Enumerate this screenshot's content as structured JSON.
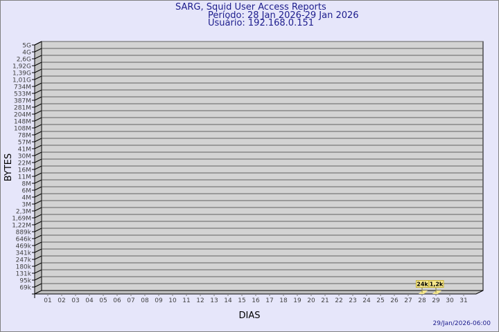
{
  "header": {
    "title": "SARG, Squid User Access Reports",
    "period": "Período: 28 Jan 2026-29 Jan 2026",
    "user": "Usuário: 192.168.0.151"
  },
  "footer": {
    "timestamp": "29/Jan/2026-06:00"
  },
  "colors": {
    "background": "#e6e6fa",
    "title": "#1c1c8c",
    "plot": "#d3d3d3",
    "bar": "#f5e68c"
  },
  "chart_data": {
    "type": "bar",
    "xlabel": "DIAS",
    "ylabel": "BYTES",
    "y_scale": "log",
    "grid": true,
    "y_tick_labels": [
      "5G",
      "4G",
      "2,6G",
      "1,92G",
      "1,39G",
      "1,01G",
      "734M",
      "533M",
      "387M",
      "281M",
      "204M",
      "148M",
      "108M",
      "78M",
      "57M",
      "41M",
      "30M",
      "22M",
      "16M",
      "11M",
      "8M",
      "6M",
      "4M",
      "3M",
      "2,3M",
      "1,69M",
      "1,22M",
      "889k",
      "646k",
      "469k",
      "341k",
      "247k",
      "180k",
      "131k",
      "95k",
      "69k"
    ],
    "categories": [
      "01",
      "02",
      "03",
      "04",
      "05",
      "06",
      "07",
      "08",
      "09",
      "10",
      "11",
      "12",
      "13",
      "14",
      "15",
      "16",
      "17",
      "18",
      "19",
      "20",
      "21",
      "22",
      "23",
      "24",
      "25",
      "26",
      "27",
      "28",
      "29",
      "30",
      "31"
    ],
    "bars": [
      {
        "day": "28",
        "value": 24000,
        "label": "24k"
      },
      {
        "day": "29",
        "value": 1200,
        "label": "1,2k"
      }
    ]
  }
}
